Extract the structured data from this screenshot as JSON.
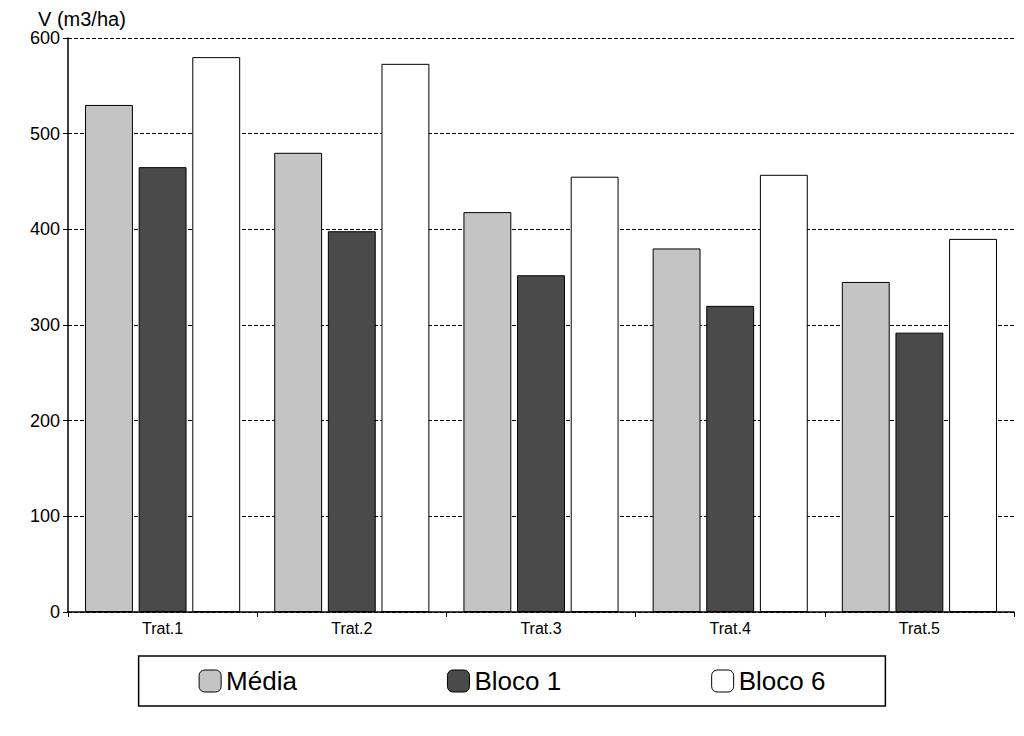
{
  "chart_data": {
    "type": "bar",
    "y_label": "V (m3/ha)",
    "categories": [
      "Trat.1",
      "Trat.2",
      "Trat.3",
      "Trat.4",
      "Trat.5"
    ],
    "series": [
      {
        "name": "Média",
        "color": "#c4c4c4",
        "values": [
          530,
          480,
          418,
          380,
          345
        ]
      },
      {
        "name": "Bloco 1",
        "color": "#4a4a4a",
        "values": [
          465,
          398,
          352,
          320,
          292
        ]
      },
      {
        "name": "Bloco 6",
        "color": "#ffffff",
        "values": [
          580,
          573,
          455,
          457,
          390
        ]
      }
    ],
    "ylim": [
      0,
      600
    ],
    "yticks": [
      0,
      100,
      200,
      300,
      400,
      500,
      600
    ],
    "grid": true,
    "legend": "bottom"
  }
}
